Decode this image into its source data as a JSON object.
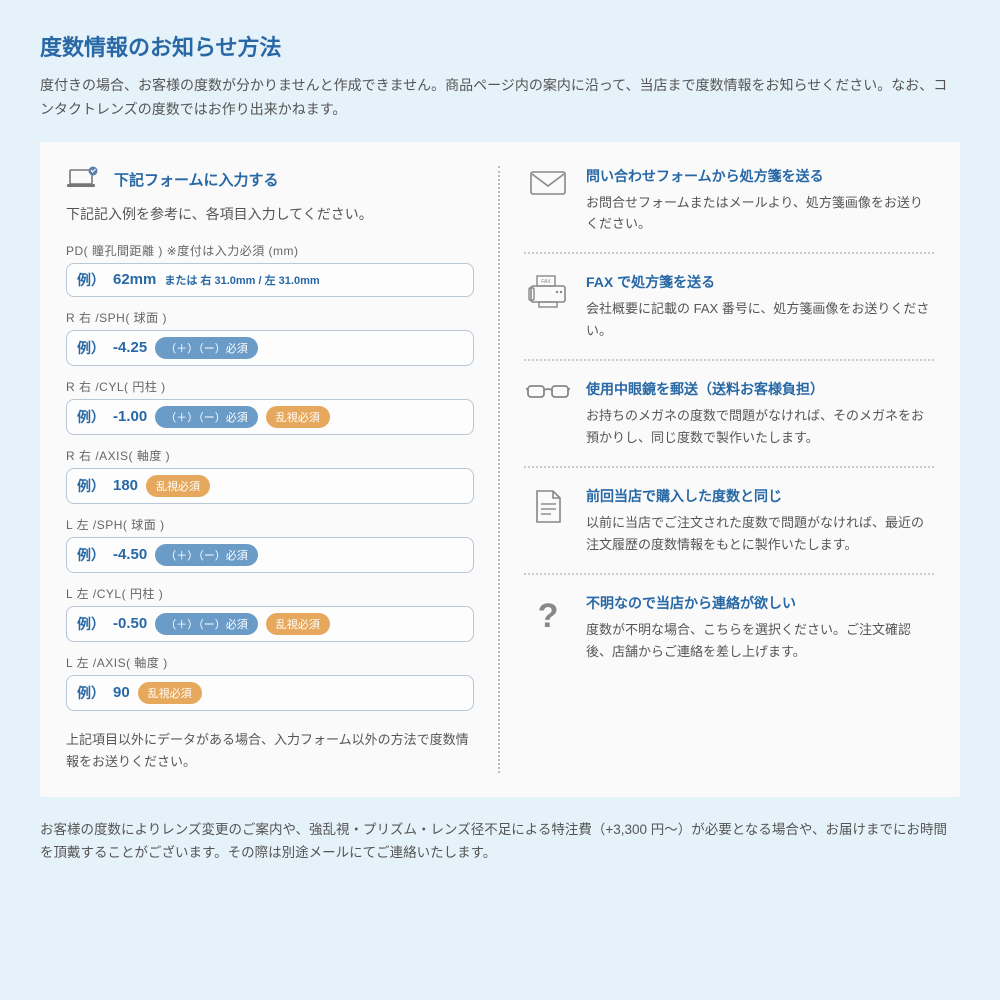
{
  "header": {
    "title": "度数情報のお知らせ方法",
    "intro": "度付きの場合、お客様の度数が分かりませんと作成できません。商品ページ内の案内に沿って、当店まで度数情報をお知らせください。なお、コンタクトレンズの度数ではお作り出来かねます。"
  },
  "colors": {
    "bg": "#e6f2fa",
    "card": "#fafafa",
    "accent": "#2868a5",
    "text": "#555",
    "border": "#b8c6d6",
    "pill_blue": "#6b9cc8",
    "pill_orange": "#e6a85c",
    "icon": "#888"
  },
  "form": {
    "header_title": "下記フォームに入力する",
    "subtitle": "下記記入例を参考に、各項目入力してください。",
    "prefix": "例）",
    "fields": [
      {
        "label": "PD( 瞳孔間距離 ) ※度付は入力必須 (mm)",
        "value": "62mm",
        "extra": "または 右 31.0mm / 左 31.0mm",
        "pills": []
      },
      {
        "label": "R 右 /SPH( 球面 )",
        "value": "-4.25",
        "pills": [
          {
            "text": "（＋）（ー）必須",
            "color": "blue"
          }
        ]
      },
      {
        "label": "R 右 /CYL( 円柱 )",
        "value": "-1.00",
        "pills": [
          {
            "text": "（＋）（ー）必須",
            "color": "blue"
          },
          {
            "text": "乱視必須",
            "color": "orange"
          }
        ]
      },
      {
        "label": "R 右 /AXIS( 軸度 )",
        "value": "180",
        "pills": [
          {
            "text": "乱視必須",
            "color": "orange"
          }
        ]
      },
      {
        "label": "L 左 /SPH( 球面 )",
        "value": "-4.50",
        "pills": [
          {
            "text": "（＋）（ー）必須",
            "color": "blue"
          }
        ]
      },
      {
        "label": "L 左 /CYL( 円柱 )",
        "value": "-0.50",
        "pills": [
          {
            "text": "（＋）（ー）必須",
            "color": "blue"
          },
          {
            "text": "乱視必須",
            "color": "orange"
          }
        ]
      },
      {
        "label": "L 左 /AXIS( 軸度 )",
        "value": "90",
        "pills": [
          {
            "text": "乱視必須",
            "color": "orange"
          }
        ]
      }
    ],
    "note": "上記項目以外にデータがある場合、入力フォーム以外の方法で度数情報をお送りください。"
  },
  "options": [
    {
      "icon": "mail",
      "title": "問い合わせフォームから処方箋を送る",
      "desc": "お問合せフォームまたはメールより、処方箋画像をお送りください。"
    },
    {
      "icon": "fax",
      "title": "FAX で処方箋を送る",
      "desc": "会社概要に記載の FAX 番号に、処方箋画像をお送りください。"
    },
    {
      "icon": "glasses",
      "title": "使用中眼鏡を郵送（送料お客様負担）",
      "desc": "お持ちのメガネの度数で問題がなければ、そのメガネをお預かりし、同じ度数で製作いたします。"
    },
    {
      "icon": "doc",
      "title": "前回当店で購入した度数と同じ",
      "desc": "以前に当店でご注文された度数で問題がなければ、最近の注文履歴の度数情報をもとに製作いたします。"
    },
    {
      "icon": "question",
      "title": "不明なので当店から連絡が欲しい",
      "desc": "度数が不明な場合、こちらを選択ください。ご注文確認後、店舗からご連絡を差し上げます。"
    }
  ],
  "footer": "お客様の度数によりレンズ変更のご案内や、強乱視・プリズム・レンズ径不足による特注費（+3,300 円〜）が必要となる場合や、お届けまでにお時間を頂戴することがございます。その際は別途メールにてご連絡いたします。"
}
